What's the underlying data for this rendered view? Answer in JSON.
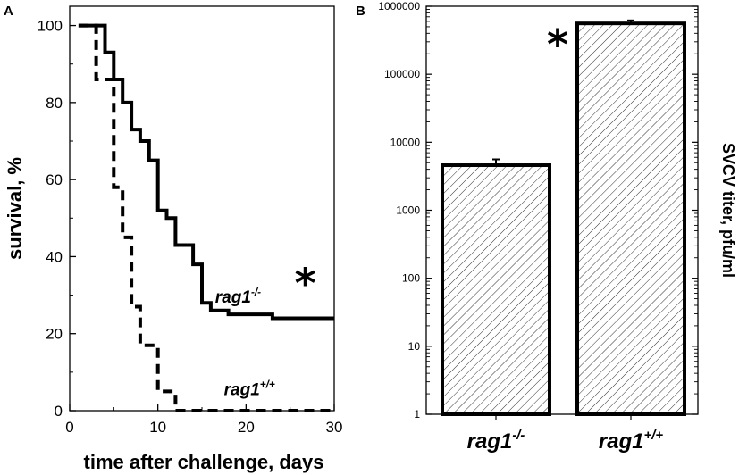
{
  "chart_data": [
    {
      "panel": "A",
      "type": "line",
      "xlabel": "time after challenge, days",
      "ylabel": "survival, %",
      "xlim": [
        0,
        30
      ],
      "ylim": [
        0,
        105
      ],
      "xticks": [
        0,
        10,
        20,
        30
      ],
      "yticks": [
        0,
        20,
        40,
        60,
        80,
        100
      ],
      "series": [
        {
          "name": "rag1-/-",
          "style": "solid",
          "x": [
            1,
            4,
            4,
            5,
            5,
            6,
            6,
            7,
            7,
            8,
            8,
            9,
            9,
            10,
            10,
            11,
            11,
            12,
            12,
            14,
            14,
            15,
            15,
            16,
            16,
            17,
            17,
            18,
            18,
            23,
            23,
            30
          ],
          "y": [
            100,
            100,
            93,
            93,
            86,
            86,
            80,
            80,
            73,
            73,
            70,
            70,
            65,
            65,
            52,
            52,
            50,
            50,
            43,
            43,
            38,
            38,
            28,
            28,
            26,
            26,
            26,
            26,
            25,
            25,
            24,
            24
          ]
        },
        {
          "name": "rag1+/+",
          "style": "dashed",
          "x": [
            1,
            3,
            3,
            4,
            4,
            5,
            5,
            6,
            6,
            7,
            7,
            8,
            8,
            10,
            10,
            11,
            11,
            12,
            12,
            30
          ],
          "y": [
            100,
            100,
            86,
            86,
            86,
            86,
            58,
            58,
            45,
            45,
            27,
            27,
            17,
            17,
            5,
            5,
            5,
            5,
            0,
            0
          ]
        }
      ],
      "annotations": [
        {
          "text": "rag1",
          "sup": "-/-",
          "x": 16.5,
          "y": 29
        },
        {
          "text": "rag1",
          "sup": "+/+",
          "x": 17.5,
          "y": 5
        },
        {
          "text": "*",
          "x": 25.5,
          "y": 34
        }
      ]
    },
    {
      "panel": "B",
      "type": "bar",
      "ylabel": "SVCV titer, pfu/ml",
      "yscale": "log",
      "ylim": [
        1,
        1000000
      ],
      "yticks": [
        1,
        10,
        100,
        1000,
        10000,
        100000,
        1000000
      ],
      "ytick_labels": [
        "1",
        "10",
        "100",
        "1000",
        "10000",
        "100000",
        "1000000"
      ],
      "categories": [
        {
          "text": "rag1",
          "sup": "-/-"
        },
        {
          "text": "rag1",
          "sup": "+/+"
        }
      ],
      "values": [
        4600,
        560000
      ],
      "errors": [
        1000,
        60000
      ],
      "annotations": [
        {
          "text": "*",
          "target": 1
        }
      ]
    }
  ]
}
